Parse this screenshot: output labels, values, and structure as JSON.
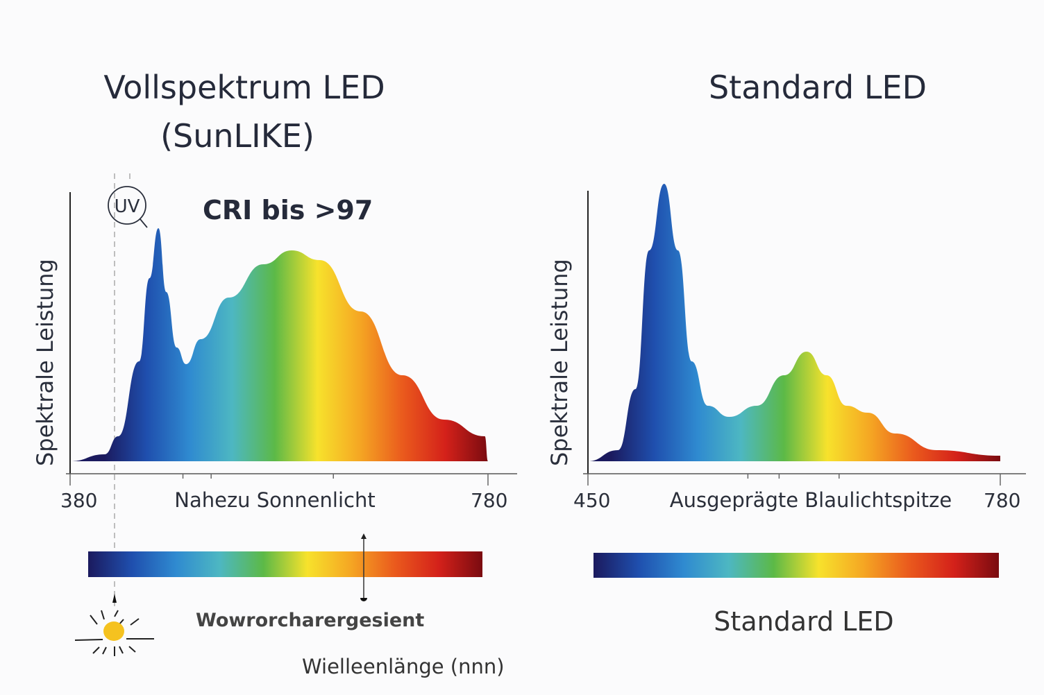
{
  "chart_data": [
    {
      "type": "area",
      "title": "Vollspektrum LED (SunLIKE)",
      "title_lines": [
        "Vollspektrum LED",
        "(SunLIKE)"
      ],
      "annotation": "CRI bis >97",
      "uv_label": "UV",
      "ylabel": "Spektrale Leistung",
      "xlabel": "Nahezu Sonnenlicht",
      "xlim": [
        380,
        780
      ],
      "ylim": [
        0,
        1
      ],
      "x_tick_labels": [
        "380",
        "780"
      ],
      "grid": false,
      "x": [
        380,
        413,
        426,
        446,
        456,
        464.5,
        472,
        482,
        491,
        505,
        532,
        565,
        592,
        619,
        658,
        698,
        738,
        777,
        780
      ],
      "y": [
        0.0,
        0.025,
        0.09,
        0.36,
        0.66,
        0.84,
        0.61,
        0.41,
        0.35,
        0.44,
        0.59,
        0.71,
        0.76,
        0.725,
        0.54,
        0.31,
        0.15,
        0.09,
        0.0
      ],
      "spectrum_caption": "Wowrorcharergesient",
      "bottom_label": "Wielleenlänge (nnn)",
      "sun_color": "#f5c21f"
    },
    {
      "type": "area",
      "title": "Standard LED",
      "ylabel": "Spektrale Leistung",
      "xlabel": "Ausgeprägte Blaulichtspitze",
      "xlim": [
        450,
        780
      ],
      "ylim": [
        0,
        1
      ],
      "x_tick_labels": [
        "450",
        "780"
      ],
      "grid": false,
      "x": [
        450,
        474,
        488,
        499,
        511,
        522,
        533,
        546,
        563,
        585,
        607,
        625,
        641,
        657,
        674,
        696,
        729,
        780
      ],
      "y": [
        0.0,
        0.04,
        0.26,
        0.76,
        1.0,
        0.76,
        0.36,
        0.2,
        0.16,
        0.2,
        0.31,
        0.395,
        0.31,
        0.2,
        0.175,
        0.1,
        0.04,
        0.02
      ],
      "spectrum_caption": "Standard LED"
    }
  ],
  "colors": [
    "#1b1a5e",
    "#1f4fae",
    "#2f8ad0",
    "#4db7c2",
    "#5cb947",
    "#f7e22c",
    "#f5a623",
    "#ea5a1d",
    "#d4211a",
    "#7a0b10"
  ]
}
